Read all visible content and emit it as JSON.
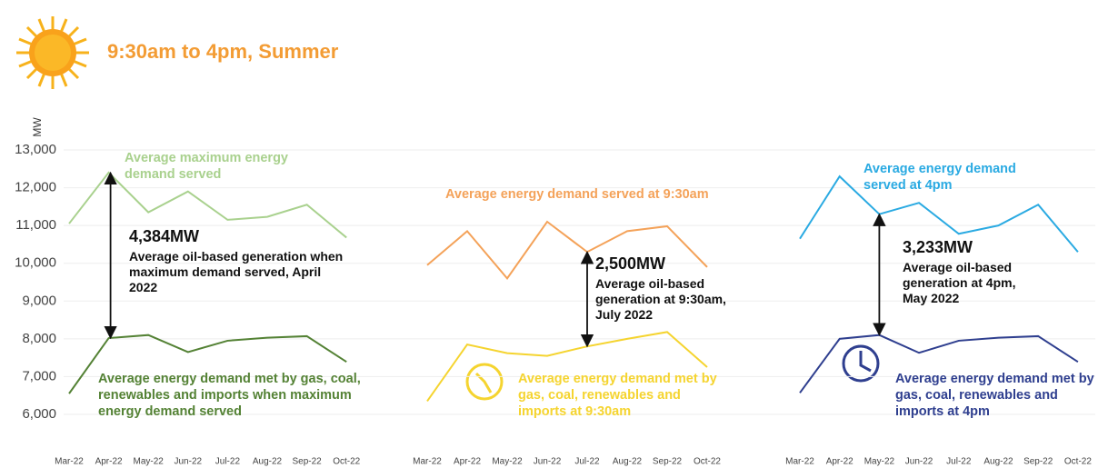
{
  "header": {
    "title": "9:30am to 4pm,  Summer"
  },
  "chart_data": [
    {
      "type": "line",
      "y_label": "MW",
      "categories": [
        "Mar-22",
        "Apr-22",
        "May-22",
        "Jun-22",
        "Jul-22",
        "Aug-22",
        "Sep-22",
        "Oct-22"
      ],
      "ylim": [
        6000,
        13000
      ],
      "yticks": [
        {
          "value": 6000,
          "label": "6,000"
        },
        {
          "value": 7000,
          "label": "7,000"
        },
        {
          "value": 8000,
          "label": "8,000"
        },
        {
          "value": 9000,
          "label": "9,000"
        },
        {
          "value": 10000,
          "label": "10,000"
        },
        {
          "value": 11000,
          "label": "11,000"
        },
        {
          "value": 12000,
          "label": "12,000"
        },
        {
          "value": 13000,
          "label": "13,000"
        }
      ],
      "grid": true,
      "series": [
        {
          "name": "Average maximum energy demand served",
          "color": "#a9d18e",
          "values": [
            11050,
            12400,
            11350,
            11900,
            11150,
            11230,
            11550,
            10680
          ]
        },
        {
          "name": "Average energy demand met by gas, coal, renewables and imports when maximum energy demand served",
          "color": "#548235",
          "values": [
            6550,
            8020,
            8100,
            7650,
            7950,
            8030,
            8070,
            7390
          ]
        }
      ],
      "annotation": {
        "value": "4,384MW",
        "text": "Average oil-based generation when maximum demand served, April 2022"
      }
    },
    {
      "type": "line",
      "categories": [
        "Mar-22",
        "Apr-22",
        "May-22",
        "Jun-22",
        "Jul-22",
        "Aug-22",
        "Sep-22",
        "Oct-22"
      ],
      "ylim": [
        6000,
        13000
      ],
      "series": [
        {
          "name": "Average energy demand served at 9:30am",
          "color": "#f4a259",
          "values": [
            9950,
            10850,
            9600,
            11100,
            10300,
            10850,
            10980,
            9900
          ]
        },
        {
          "name": "Average energy demand met by gas, coal, renewables and imports at 9:30am",
          "color": "#f5d42f",
          "values": [
            6350,
            7850,
            7620,
            7550,
            7800,
            8000,
            8180,
            7250
          ]
        }
      ],
      "annotation": {
        "value": "2,500MW",
        "text": "Average oil-based generation at 9:30am, July 2022"
      }
    },
    {
      "type": "line",
      "categories": [
        "Mar-22",
        "Apr-22",
        "May-22",
        "Jun-22",
        "Jul-22",
        "Aug-22",
        "Sep-22",
        "Oct-22"
      ],
      "ylim": [
        6000,
        13000
      ],
      "series": [
        {
          "name": "Average energy demand served at 4pm",
          "color": "#2aaae2",
          "values": [
            10650,
            12300,
            11300,
            11600,
            10780,
            11000,
            11550,
            10300
          ]
        },
        {
          "name": "Average energy demand met by gas, coal, renewables and imports at 4pm",
          "color": "#2f3f8f",
          "values": [
            6570,
            8000,
            8100,
            7630,
            7950,
            8030,
            8070,
            7390
          ]
        }
      ],
      "annotation": {
        "value": "3,233MW",
        "text": "Average oil-based generation at 4pm, May 2022"
      }
    }
  ]
}
